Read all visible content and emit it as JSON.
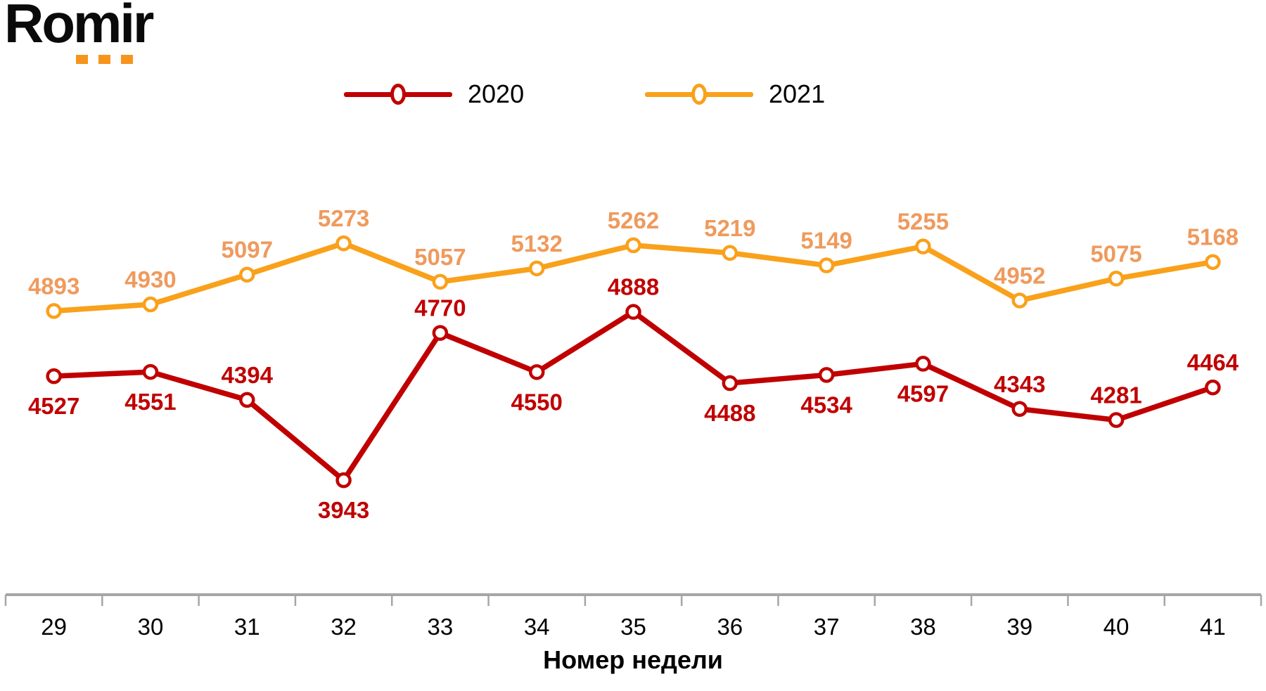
{
  "logo": {
    "text": "Romir",
    "accent_color": "#F7941E"
  },
  "legend": {
    "items": [
      {
        "label": "2020",
        "color": "#C00000"
      },
      {
        "label": "2021",
        "color": "#F9A11B"
      }
    ]
  },
  "chart_data": {
    "type": "line",
    "categories": [
      "29",
      "30",
      "31",
      "32",
      "33",
      "34",
      "35",
      "36",
      "37",
      "38",
      "39",
      "40",
      "41"
    ],
    "xlabel": "Номер недели",
    "series": [
      {
        "name": "2020",
        "color": "#C00000",
        "label_color": "#C00000",
        "values": [
          4527,
          4551,
          4394,
          3943,
          4770,
          4550,
          4888,
          4488,
          4534,
          4597,
          4343,
          4281,
          4464
        ],
        "label_pos": [
          "below",
          "below",
          "above",
          "below",
          "above",
          "below",
          "above",
          "below",
          "below",
          "below",
          "above",
          "above",
          "above"
        ]
      },
      {
        "name": "2021",
        "color": "#F9A11B",
        "label_color": "#EF9A5D",
        "values": [
          4893,
          4930,
          5097,
          5273,
          5057,
          5132,
          5262,
          5219,
          5149,
          5255,
          4952,
          5075,
          5168
        ],
        "label_pos": [
          "above",
          "above",
          "above",
          "above",
          "above",
          "above",
          "above",
          "above",
          "above",
          "above",
          "above",
          "above",
          "above"
        ]
      }
    ],
    "axis_color": "#A6A6A6",
    "ylim": [
      3900,
      5500
    ],
    "grid": false,
    "legend_position": "top",
    "marker": "circle-open"
  }
}
